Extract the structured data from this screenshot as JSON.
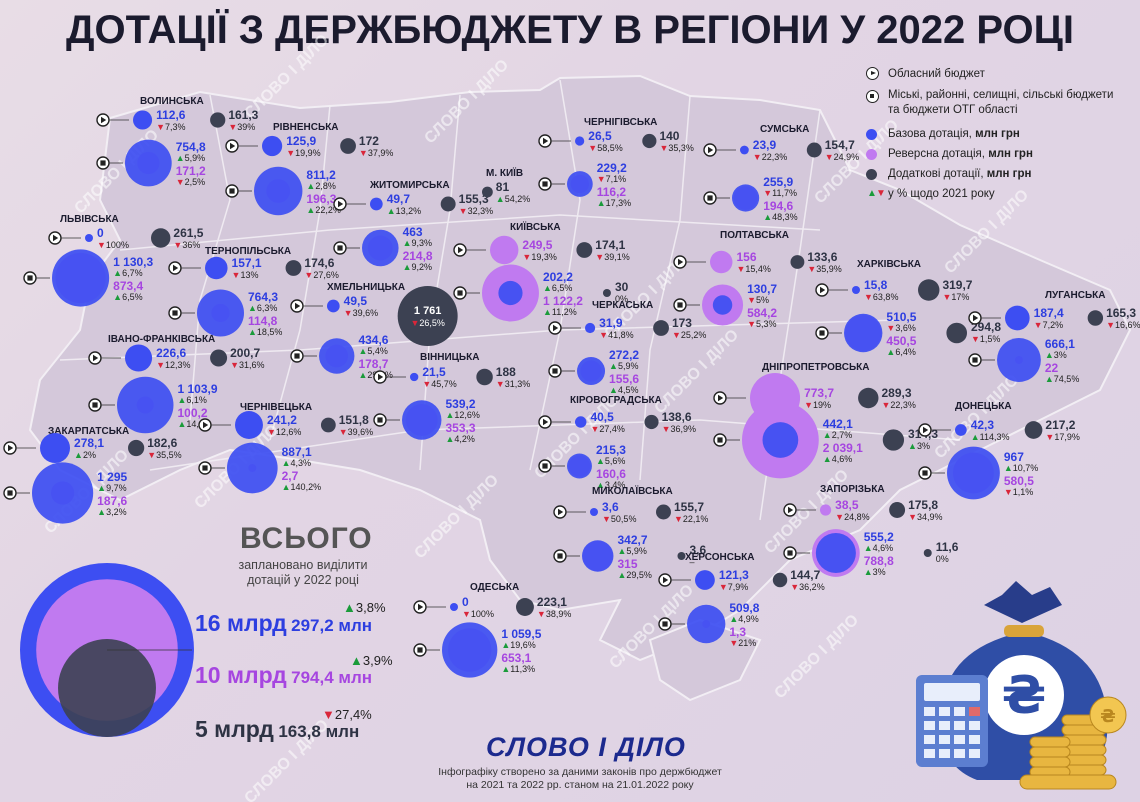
{
  "title": "ДОТАЦІЇ З ДЕРЖБЮДЖЕТУ В РЕГІОНИ У 2022 РОЦІ",
  "watermark": "СЛОВО І ДІЛО",
  "colors": {
    "base": "#3d4ef2",
    "reverse": "#c07af0",
    "additional": "#3c4152",
    "up": "#1a9b3a",
    "down": "#d9263a",
    "base_text": "#2d3ee0",
    "reverse_text": "#a646e0"
  },
  "legend": {
    "oblast": "Обласний бюджет",
    "local_line1": "Міські, районні, селищні, сільські бюджети",
    "local_line2": "та бюджети ОТГ області",
    "base_label": "Базова дотація,",
    "reverse_label": "Реверсна дотація,",
    "additional_label": "Додаткові дотації,",
    "unit": "млн грн",
    "pct_note": "у % щодо 2021 року"
  },
  "total": {
    "heading": "ВСЬОГО",
    "subtitle": "заплановано виділити дотацій у 2022 році",
    "base": {
      "big": "16 млрд",
      "small": "297,2 млн",
      "pct": "3,8%",
      "dir": "up",
      "value_mln": 16297.2
    },
    "reverse": {
      "big": "10 млрд",
      "small": "794,4 млн",
      "pct": "3,9%",
      "dir": "up",
      "value_mln": 10794.4
    },
    "additional": {
      "big": "5 млрд",
      "small": "163,8 млн",
      "pct": "27,4%",
      "dir": "down",
      "value_mln": 5163.8
    }
  },
  "brand": "СЛОВО І ДІЛО",
  "credit_line1": "Інфографіку створено за даними законів про держбюджет",
  "credit_line2": "на 2021 та 2022 рр. станом на 21.01.2022 року",
  "regions": [
    {
      "name": "ВОЛИНСЬКА",
      "ob": {
        "b": [
          "112,6",
          "7,3%",
          "d"
        ],
        "a": [
          "161,3",
          "39%",
          "d"
        ]
      },
      "lo": {
        "b": [
          "754,8",
          "5,9%",
          "u"
        ],
        "r": [
          "171,2",
          "2,5%",
          "d"
        ]
      }
    },
    {
      "name": "РІВНЕНСЬКА",
      "ob": {
        "b": [
          "125,9",
          "19,9%",
          "d"
        ],
        "a": [
          "172",
          "37,9%",
          "d"
        ]
      },
      "lo": {
        "b": [
          "811,2",
          "2,8%",
          "u"
        ],
        "r": [
          "196,3",
          "22,2%",
          "u"
        ]
      }
    },
    {
      "name": "ЛЬВІВСЬКА",
      "ob": {
        "b": [
          "0",
          "100%",
          "d"
        ],
        "a": [
          "261,5",
          "36%",
          "d"
        ]
      },
      "lo": {
        "b": [
          "1 130,3",
          "6,7%",
          "u"
        ],
        "r": [
          "873,4",
          "6,5%",
          "u"
        ]
      }
    },
    {
      "name": "ТЕРНОПІЛЬСЬКА",
      "ob": {
        "b": [
          "157,1",
          "13%",
          "d"
        ],
        "a": [
          "174,6",
          "27,6%",
          "d"
        ]
      },
      "lo": {
        "b": [
          "764,3",
          "6,3%",
          "u"
        ],
        "r": [
          "114,8",
          "18,5%",
          "u"
        ]
      }
    },
    {
      "name": "ЖИТОМИРСЬКА",
      "ob": {
        "b": [
          "49,7",
          "13,2%",
          "u"
        ],
        "a": [
          "155,3",
          "32,3%",
          "d"
        ]
      },
      "lo": {
        "b": [
          "463",
          "9,3%",
          "u"
        ],
        "r": [
          "214,8",
          "9,2%",
          "u"
        ]
      }
    },
    {
      "name": "ХМЕЛЬНИЦЬКА",
      "ob": {
        "b": [
          "49,5",
          "39,6%",
          "d"
        ],
        "a": [
          "1 761",
          "26,5%",
          "d"
        ]
      },
      "lo": {
        "b": [
          "434,6",
          "5,4%",
          "u"
        ],
        "r": [
          "178,7",
          "29,4%",
          "u"
        ]
      }
    },
    {
      "name": "ІВАНО-ФРАНКІВСЬКА",
      "ob": {
        "b": [
          "226,6",
          "12,3%",
          "d"
        ],
        "a": [
          "200,7",
          "31,6%",
          "d"
        ]
      },
      "lo": {
        "b": [
          "1 103,9",
          "6,1%",
          "u"
        ],
        "r": [
          "100,2",
          "14,1%",
          "u"
        ]
      }
    },
    {
      "name": "ЧЕРНІВЕЦЬКА",
      "ob": {
        "b": [
          "241,2",
          "12,6%",
          "d"
        ],
        "a": [
          "151,8",
          "39,6%",
          "d"
        ]
      },
      "lo": {
        "b": [
          "887,1",
          "4,3%",
          "u"
        ],
        "r": [
          "2,7",
          "140,2%",
          "u"
        ]
      }
    },
    {
      "name": "ЗАКАРПАТСЬКА",
      "ob": {
        "b": [
          "278,1",
          "2%",
          "u"
        ],
        "a": [
          "182,6",
          "35,5%",
          "d"
        ]
      },
      "lo": {
        "b": [
          "1 295",
          "9,7%",
          "u"
        ],
        "r": [
          "187,6",
          "3,2%",
          "u"
        ]
      }
    },
    {
      "name": "ВІННИЦЬКА",
      "ob": {
        "b": [
          "21,5",
          "45,7%",
          "d"
        ],
        "a": [
          "188",
          "31,3%",
          "d"
        ]
      },
      "lo": {
        "b": [
          "539,2",
          "12,6%",
          "u"
        ],
        "r": [
          "353,3",
          "4,2%",
          "u"
        ]
      }
    },
    {
      "name": "М. КИЇВ",
      "ob": {
        "a": [
          "81",
          "54,2%",
          "u"
        ]
      }
    },
    {
      "name": "КИЇВСЬКА",
      "ob": {
        "r": [
          "249,5",
          "19,3%",
          "d"
        ],
        "a": [
          "174,1",
          "39,1%",
          "d"
        ]
      },
      "lo": {
        "b": [
          "202,2",
          "6,5%",
          "u"
        ],
        "r": [
          "1 122,2",
          "11,2%",
          "u"
        ],
        "a": [
          "30",
          "0%",
          ""
        ]
      }
    },
    {
      "name": "ЧЕРНІГІВСЬКА",
      "ob": {
        "b": [
          "26,5",
          "58,5%",
          "d"
        ],
        "a": [
          "140",
          "35,3%",
          "d"
        ]
      },
      "lo": {
        "b": [
          "229,2",
          "7,1%",
          "d"
        ],
        "r": [
          "116,2",
          "17,3%",
          "u"
        ]
      }
    },
    {
      "name": "СУМСЬКА",
      "ob": {
        "b": [
          "23,9",
          "22,3%",
          "d"
        ],
        "a": [
          "154,7",
          "24,9%",
          "d"
        ]
      },
      "lo": {
        "b": [
          "255,9",
          "11,7%",
          "d"
        ],
        "r": [
          "194,6",
          "48,3%",
          "u"
        ]
      }
    },
    {
      "name": "ПОЛТАВСЬКА",
      "ob": {
        "r": [
          "156",
          "15,4%",
          "d"
        ],
        "a": [
          "133,6",
          "35,9%",
          "d"
        ]
      },
      "lo": {
        "b": [
          "130,7",
          "5%",
          "d"
        ],
        "r": [
          "584,2",
          "5,3%",
          "d"
        ]
      }
    },
    {
      "name": "ХАРКІВСЬКА",
      "ob": {
        "b": [
          "15,8",
          "63,8%",
          "d"
        ],
        "a": [
          "319,7",
          "17%",
          "d"
        ]
      },
      "lo": {
        "b": [
          "510,5",
          "3,6%",
          "d"
        ],
        "r": [
          "450,5",
          "6,4%",
          "u"
        ],
        "a": [
          "294,8",
          "1,5%",
          "d"
        ]
      }
    },
    {
      "name": "ЛУГАНСЬКА",
      "ob": {
        "b": [
          "187,4",
          "7,2%",
          "d"
        ],
        "a": [
          "165,3",
          "16,6%",
          "d"
        ]
      },
      "lo": {
        "b": [
          "666,1",
          "3%",
          "u"
        ],
        "r": [
          "22",
          "74,5%",
          "u"
        ]
      }
    },
    {
      "name": "ЧЕРКАСЬКА",
      "ob": {
        "b": [
          "31,9",
          "41,8%",
          "d"
        ],
        "a": [
          "173",
          "25,2%",
          "d"
        ]
      },
      "lo": {
        "b": [
          "272,2",
          "5,9%",
          "u"
        ],
        "r": [
          "155,6",
          "4,5%",
          "u"
        ]
      }
    },
    {
      "name": "ДНІПРОПЕТРОВСЬКА",
      "ob": {
        "r": [
          "773,7",
          "19%",
          "d"
        ],
        "a": [
          "289,3",
          "22,3%",
          "d"
        ]
      },
      "lo": {
        "b": [
          "442,1",
          "2,7%",
          "u"
        ],
        "r": [
          "2 039,1",
          "4,6%",
          "u"
        ],
        "a": [
          "314,3",
          "3%",
          "u"
        ]
      }
    },
    {
      "name": "ДОНЕЦЬКА",
      "ob": {
        "b": [
          "42,3",
          "114,3%",
          "u"
        ],
        "a": [
          "217,2",
          "17,9%",
          "d"
        ]
      },
      "lo": {
        "b": [
          "967",
          "10,7%",
          "u"
        ],
        "r": [
          "580,5",
          "1,1%",
          "d"
        ]
      }
    },
    {
      "name": "КІРОВОГРАДСЬКА",
      "ob": {
        "b": [
          "40,5",
          "27,4%",
          "d"
        ],
        "a": [
          "138,6",
          "36,9%",
          "d"
        ]
      },
      "lo": {
        "b": [
          "215,3",
          "5,6%",
          "u"
        ],
        "r": [
          "160,6",
          "3,4%",
          "u"
        ]
      }
    },
    {
      "name": "МИКОЛАЇВСЬКА",
      "ob": {
        "b": [
          "3,6",
          "50,5%",
          "d"
        ],
        "a": [
          "155,7",
          "22,1%",
          "d"
        ]
      },
      "lo": {
        "b": [
          "342,7",
          "5,9%",
          "u"
        ],
        "r": [
          "315",
          "29,5%",
          "u"
        ],
        "a": [
          "3,6",
          "–",
          ""
        ]
      }
    },
    {
      "name": "ЗАПОРІЗЬКА",
      "ob": {
        "r": [
          "38,5",
          "24,8%",
          "d"
        ],
        "a": [
          "175,8",
          "34,9%",
          "d"
        ]
      },
      "lo": {
        "b": [
          "555,2",
          "4,6%",
          "u"
        ],
        "r": [
          "788,8",
          "3%",
          "u"
        ],
        "a": [
          "11,6",
          "0%",
          ""
        ]
      }
    },
    {
      "name": "ОДЕСЬКА",
      "ob": {
        "b": [
          "0",
          "100%",
          "d"
        ],
        "a": [
          "223,1",
          "38,9%",
          "d"
        ]
      },
      "lo": {
        "b": [
          "1 059,5",
          "19,6%",
          "u"
        ],
        "r": [
          "653,1",
          "11,3%",
          "u"
        ]
      }
    },
    {
      "name": "ХЕРСОНСЬКА",
      "ob": {
        "b": [
          "121,3",
          "7,9%",
          "d"
        ],
        "a": [
          "144,7",
          "36,2%",
          "d"
        ]
      },
      "lo": {
        "b": [
          "509,8",
          "4,9%",
          "u"
        ],
        "r": [
          "1,3",
          "21%",
          "d"
        ]
      }
    }
  ]
}
